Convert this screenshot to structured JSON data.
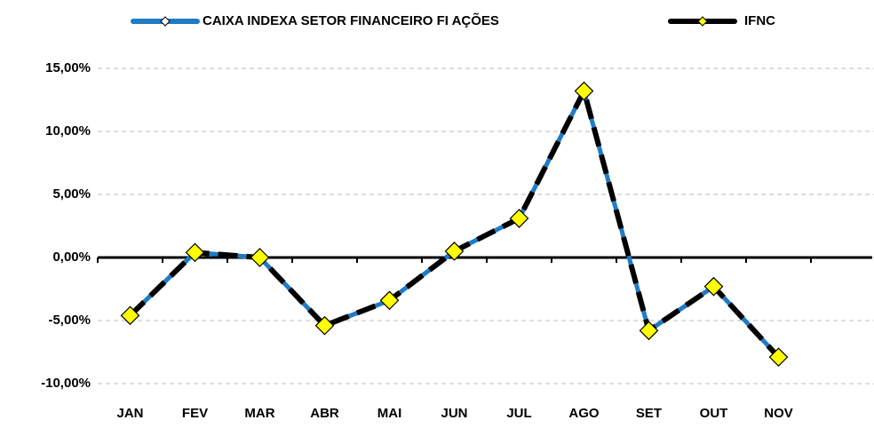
{
  "chart_data": {
    "type": "line",
    "categories": [
      "JAN",
      "FEV",
      "MAR",
      "ABR",
      "MAI",
      "JUN",
      "JUL",
      "AGO",
      "SET",
      "OUT",
      "NOV",
      null
    ],
    "series": [
      {
        "name": "CAIXA INDEXA SETOR FINANCEIRO FI AÇÕES",
        "color": "#1f7bc4",
        "values": [
          -4.6,
          0.4,
          0.0,
          -5.4,
          -3.4,
          0.5,
          3.1,
          13.2,
          -5.8,
          -2.3,
          -7.9,
          null
        ]
      },
      {
        "name": "IFNC",
        "color": "#000000",
        "marker_color": "#ffff00",
        "values": [
          -4.6,
          0.4,
          0.0,
          -5.4,
          -3.4,
          0.5,
          3.1,
          13.2,
          -5.8,
          -2.3,
          -7.9,
          null
        ]
      }
    ],
    "ylim": [
      -10,
      15
    ],
    "yticks": [
      {
        "value": -10,
        "label": "-10,00%"
      },
      {
        "value": -5,
        "label": "-5,00%"
      },
      {
        "value": 0,
        "label": "0,00%"
      },
      {
        "value": 5,
        "label": "5,00%"
      },
      {
        "value": 10,
        "label": "10,00%"
      },
      {
        "value": 15,
        "label": "15,00%"
      }
    ],
    "grid": true
  }
}
